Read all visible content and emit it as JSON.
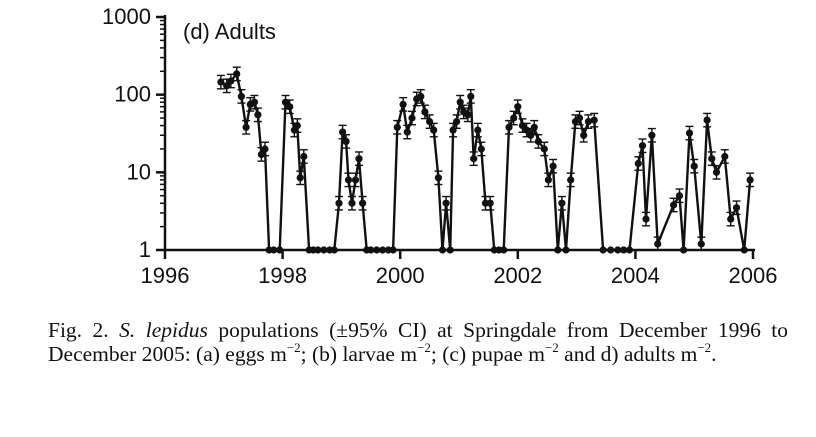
{
  "chart_data": {
    "type": "line",
    "panel_label": "(d) Adults",
    "x_ticks": [
      "1996",
      "1998",
      "2000",
      "2002",
      "2004",
      "2006"
    ],
    "y_ticks": [
      "1",
      "10",
      "100",
      "1000"
    ],
    "xlim": [
      1996,
      2006
    ],
    "ylim": [
      1,
      1000
    ],
    "y_scale": "log",
    "grid": false,
    "series": [
      {
        "points": [
          [
            1996.95,
            145
          ],
          [
            1997.05,
            130
          ],
          [
            1997.12,
            150
          ],
          [
            1997.22,
            185
          ],
          [
            1997.3,
            95
          ],
          [
            1997.38,
            38
          ],
          [
            1997.45,
            75
          ],
          [
            1997.52,
            80
          ],
          [
            1997.58,
            55
          ],
          [
            1997.64,
            17
          ],
          [
            1997.7,
            20
          ],
          [
            1997.77,
            1
          ],
          [
            1997.85,
            1
          ],
          [
            1997.95,
            1
          ],
          [
            1998.05,
            80
          ],
          [
            1998.12,
            70
          ],
          [
            1998.2,
            35
          ],
          [
            1998.25,
            40
          ],
          [
            1998.3,
            8.5
          ],
          [
            1998.36,
            16
          ],
          [
            1998.45,
            1
          ],
          [
            1998.52,
            1
          ],
          [
            1998.6,
            1
          ],
          [
            1998.7,
            1
          ],
          [
            1998.8,
            1
          ],
          [
            1998.88,
            1
          ],
          [
            1998.96,
            4
          ],
          [
            1999.02,
            33
          ],
          [
            1999.08,
            25
          ],
          [
            1999.12,
            8
          ],
          [
            1999.18,
            4
          ],
          [
            1999.24,
            8
          ],
          [
            1999.3,
            15
          ],
          [
            1999.36,
            4
          ],
          [
            1999.43,
            1
          ],
          [
            1999.5,
            1
          ],
          [
            1999.6,
            1
          ],
          [
            1999.7,
            1
          ],
          [
            1999.8,
            1
          ],
          [
            1999.88,
            1
          ],
          [
            1999.95,
            38
          ],
          [
            2000.05,
            75
          ],
          [
            2000.12,
            33
          ],
          [
            2000.2,
            50
          ],
          [
            2000.28,
            88
          ],
          [
            2000.35,
            95
          ],
          [
            2000.42,
            60
          ],
          [
            2000.5,
            45
          ],
          [
            2000.57,
            35
          ],
          [
            2000.65,
            8.5
          ],
          [
            2000.72,
            1
          ],
          [
            2000.78,
            4
          ],
          [
            2000.85,
            1
          ],
          [
            2000.9,
            35
          ],
          [
            2000.96,
            45
          ],
          [
            2001.02,
            80
          ],
          [
            2001.08,
            60
          ],
          [
            2001.15,
            55
          ],
          [
            2001.2,
            95
          ],
          [
            2001.25,
            15
          ],
          [
            2001.32,
            35
          ],
          [
            2001.38,
            20
          ],
          [
            2001.45,
            4
          ],
          [
            2001.53,
            4
          ],
          [
            2001.6,
            1
          ],
          [
            2001.68,
            1
          ],
          [
            2001.76,
            1
          ],
          [
            2001.85,
            38
          ],
          [
            2001.93,
            50
          ],
          [
            2002.0,
            70
          ],
          [
            2002.08,
            40
          ],
          [
            2002.15,
            35
          ],
          [
            2002.22,
            30
          ],
          [
            2002.28,
            38
          ],
          [
            2002.35,
            25
          ],
          [
            2002.45,
            20
          ],
          [
            2002.52,
            8
          ],
          [
            2002.6,
            12
          ],
          [
            2002.68,
            1
          ],
          [
            2002.75,
            4
          ],
          [
            2002.82,
            1
          ],
          [
            2002.9,
            8
          ],
          [
            2002.98,
            45
          ],
          [
            2003.05,
            50
          ],
          [
            2003.12,
            30
          ],
          [
            2003.2,
            45
          ],
          [
            2003.3,
            47
          ],
          [
            2003.45,
            1
          ],
          [
            2003.58,
            1
          ],
          [
            2003.7,
            1
          ],
          [
            2003.8,
            1
          ],
          [
            2003.9,
            1
          ],
          [
            2004.05,
            13
          ],
          [
            2004.12,
            22
          ],
          [
            2004.18,
            2.5
          ],
          [
            2004.28,
            30
          ],
          [
            2004.38,
            1.2
          ],
          [
            2004.65,
            3.8
          ],
          [
            2004.75,
            5
          ],
          [
            2004.82,
            1
          ],
          [
            2004.92,
            32
          ],
          [
            2005.0,
            12
          ],
          [
            2005.12,
            1.2
          ],
          [
            2005.22,
            47
          ],
          [
            2005.3,
            15
          ],
          [
            2005.38,
            10
          ],
          [
            2005.52,
            16
          ],
          [
            2005.62,
            2.5
          ],
          [
            2005.72,
            3.5
          ],
          [
            2005.85,
            1
          ],
          [
            2005.95,
            8
          ]
        ]
      }
    ]
  },
  "caption": {
    "prefix": "Fig. 2.",
    "species": "S. lepidus",
    "line1_rest": "populations (±95% CI) at Springdale from",
    "line2_a": "December 1996 to December 2005: (a) eggs m",
    "line2_b": "; (b) larvae m",
    "line3_a": "(c) pupae m",
    "line3_b": "and d) adults m",
    "line3_end": ".",
    "exponent": "−2"
  }
}
